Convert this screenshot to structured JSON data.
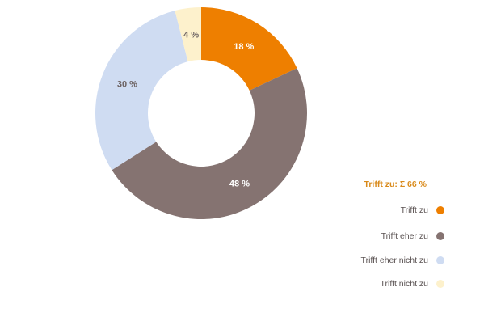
{
  "chart_data": {
    "type": "pie",
    "variant": "donut",
    "categories": [
      "Trifft zu",
      "Trifft eher zu",
      "Trifft eher nicht zu",
      "Trifft nicht zu"
    ],
    "values": [
      18,
      48,
      30,
      4
    ],
    "value_labels": [
      "18 %",
      "48 %",
      "30 %",
      "4 %"
    ],
    "colors": [
      "#ee7f00",
      "#857371",
      "#cfdcf2",
      "#fdf1cc"
    ],
    "label_colors": [
      "#ffffff",
      "#ffffff",
      "#6d6363",
      "#6d6363"
    ],
    "legend": {
      "placement": "bottom-right",
      "title": "Trifft zu: Σ 66 %",
      "title_color": "#d98a1a",
      "items": [
        {
          "label": "Trifft zu",
          "color": "#ee7f00"
        },
        {
          "label": "Trifft eher zu",
          "color": "#857371"
        },
        {
          "label": "Trifft eher nicht zu",
          "color": "#cfdcf2"
        },
        {
          "label": "Trifft nicht zu",
          "color": "#fdf1cc"
        }
      ]
    }
  }
}
